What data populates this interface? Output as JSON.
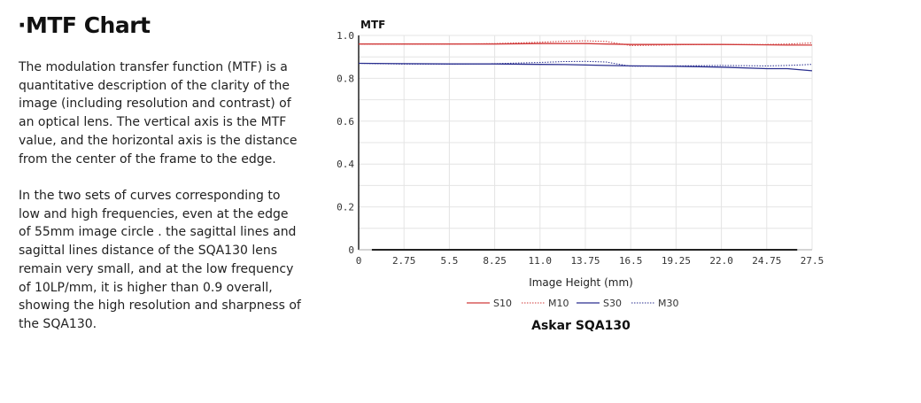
{
  "text": {
    "title": "·MTF Chart",
    "paragraph1": "The modulation transfer function (MTF) is a quantitative description of the clarity of the image (including resolution and contrast) of an optical lens. The vertical axis is the MTF value, and the horizontal axis is the distance from the center of the frame to the edge.",
    "paragraph2": "In the two sets of curves corresponding to low and high frequencies, even at the edge of 55mm image circle . the sagittal lines and sagittal lines distance of the SQA130 lens remain very small, and at the low frequency of 10LP/mm, it is higher than 0.9 overall, showing the high resolution and sharpness of the SQA130."
  },
  "chart_data": {
    "type": "line",
    "title": "Askar SQA130",
    "ylabel": "MTF",
    "xlabel": "Image Height (mm)",
    "xlim": [
      0,
      27.5
    ],
    "ylim": [
      0,
      1.0
    ],
    "xticks": [
      "0",
      "2.75",
      "5.5",
      "8.25",
      "11.0",
      "13.75",
      "16.5",
      "19.25",
      "22.0",
      "24.75",
      "27.5"
    ],
    "yticks": [
      "0",
      "0.2",
      "0.4",
      "0.6",
      "0.8",
      "1.0"
    ],
    "grid": true,
    "legend": "bottom",
    "x": [
      0,
      2.75,
      5.5,
      8.25,
      11,
      12.5,
      13.75,
      15,
      16.5,
      19.25,
      22,
      24.75,
      26,
      27.5
    ],
    "series": [
      {
        "name": "S10",
        "color": "#d03a3a",
        "dash": false,
        "values": [
          0.96,
          0.96,
          0.96,
          0.96,
          0.962,
          0.962,
          0.962,
          0.96,
          0.958,
          0.958,
          0.958,
          0.956,
          0.955,
          0.955
        ]
      },
      {
        "name": "M10",
        "color": "#d03a3a",
        "dash": true,
        "values": [
          0.96,
          0.96,
          0.96,
          0.962,
          0.968,
          0.973,
          0.975,
          0.972,
          0.953,
          0.956,
          0.958,
          0.958,
          0.96,
          0.965
        ]
      },
      {
        "name": "S30",
        "color": "#2a2f8f",
        "dash": false,
        "values": [
          0.87,
          0.868,
          0.867,
          0.867,
          0.865,
          0.864,
          0.862,
          0.86,
          0.858,
          0.856,
          0.852,
          0.845,
          0.845,
          0.835
        ]
      },
      {
        "name": "M30",
        "color": "#2a2f8f",
        "dash": true,
        "values": [
          0.87,
          0.866,
          0.866,
          0.868,
          0.874,
          0.878,
          0.879,
          0.876,
          0.856,
          0.858,
          0.86,
          0.858,
          0.86,
          0.865
        ]
      }
    ]
  }
}
